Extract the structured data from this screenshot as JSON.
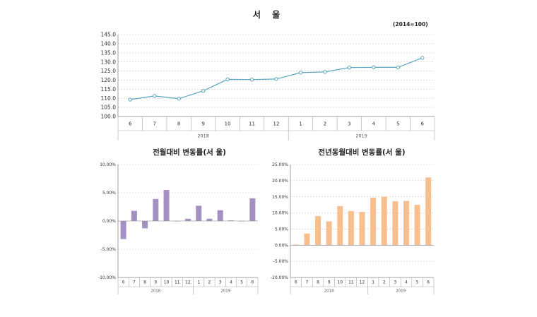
{
  "chart_data": [
    {
      "type": "line",
      "title": "서  울",
      "subtitle": "(2014=100)",
      "categories": [
        "6",
        "7",
        "8",
        "9",
        "10",
        "11",
        "12",
        "1",
        "2",
        "3",
        "4",
        "5",
        "6"
      ],
      "groups": [
        {
          "label": "2018",
          "from": 0,
          "to": 6
        },
        {
          "label": "2019",
          "from": 7,
          "to": 12
        }
      ],
      "values": [
        109.3,
        111.3,
        109.8,
        114.1,
        120.4,
        120.3,
        120.6,
        124.1,
        124.5,
        126.9,
        127.0,
        127.0,
        132.2
      ],
      "ylim": [
        100.0,
        145.0
      ],
      "yticks": [
        "100.0",
        "105.0",
        "110.0",
        "115.0",
        "120.0",
        "125.0",
        "130.0",
        "135.0",
        "140.0",
        "145.0"
      ],
      "color": "#5ba6c0",
      "grid": true
    },
    {
      "type": "bar",
      "title": "전월대비 변동률(서  울)",
      "categories": [
        "6",
        "7",
        "8",
        "9",
        "10",
        "11",
        "12",
        "1",
        "2",
        "3",
        "4",
        "5",
        "6"
      ],
      "groups": [
        {
          "label": "2018",
          "from": 0,
          "to": 6
        },
        {
          "label": "2019",
          "from": 7,
          "to": 12
        }
      ],
      "values": [
        -3.2,
        1.8,
        -1.3,
        3.9,
        5.5,
        0.0,
        0.4,
        2.7,
        0.4,
        1.9,
        0.1,
        0.0,
        4.0
      ],
      "ylim": [
        -10,
        10
      ],
      "yticks": [
        "-10.00%",
        "-5.00%",
        "0.00%",
        "5.00%",
        "10.00%"
      ],
      "color": "#a591c1",
      "grid": true
    },
    {
      "type": "bar",
      "title": "전년동월대비 변동률(서  울)",
      "categories": [
        "6",
        "7",
        "8",
        "9",
        "10",
        "11",
        "12",
        "1",
        "2",
        "3",
        "4",
        "5",
        "6"
      ],
      "groups": [
        {
          "label": "2018",
          "from": 0,
          "to": 6
        },
        {
          "label": "2019",
          "from": 7,
          "to": 12
        }
      ],
      "values": [
        0.2,
        3.6,
        9.0,
        7.4,
        12.1,
        10.6,
        10.3,
        14.7,
        15.0,
        13.6,
        13.7,
        12.5,
        21.0
      ],
      "ylim": [
        -10,
        25
      ],
      "yticks": [
        "-10.00%",
        "-5.00%",
        "0.00%",
        "5.00%",
        "10.00%",
        "15.00%",
        "20.00%",
        "25.00%"
      ],
      "color": "#f8bf8e",
      "grid": true
    }
  ]
}
